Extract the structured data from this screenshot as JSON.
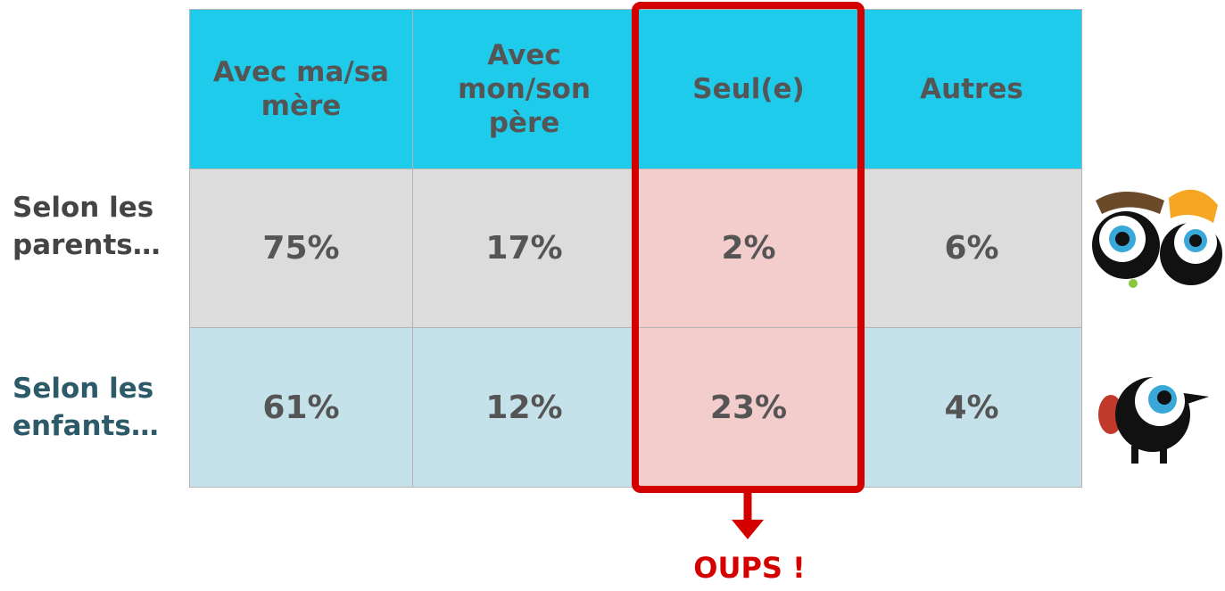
{
  "table": {
    "columns": [
      "Avec ma/sa mère",
      "Avec mon/son père",
      "Seul(e)",
      "Autres"
    ],
    "rows": [
      {
        "label": "Selon les parents…",
        "cells": [
          "75%",
          "17%",
          "2%",
          "6%"
        ]
      },
      {
        "label": "Selon les enfants…",
        "cells": [
          "61%",
          "12%",
          "23%",
          "4%"
        ]
      }
    ]
  },
  "callout": "OUPS !"
}
